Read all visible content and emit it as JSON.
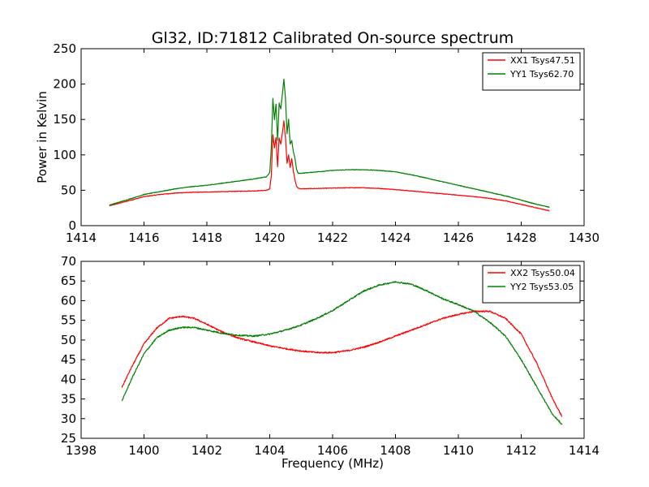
{
  "figure": {
    "title": "Gl32, ID:71812 Calibrated On-source spectrum"
  },
  "chart_data": [
    {
      "type": "line",
      "title": "Gl32, ID:71812 Calibrated On-source spectrum",
      "xlabel": "",
      "ylabel": "Power in Kelvin",
      "xlim": [
        1414,
        1430
      ],
      "ylim": [
        0,
        250
      ],
      "xticks": [
        1414,
        1416,
        1418,
        1420,
        1422,
        1424,
        1426,
        1428,
        1430
      ],
      "yticks": [
        0,
        50,
        100,
        150,
        200,
        250
      ],
      "grid": false,
      "legend_position": "top-right",
      "series": [
        {
          "name": "XX1 Tsys47.51",
          "color": "#ff0000",
          "x": [
            1414.9,
            1415.5,
            1416.0,
            1416.5,
            1417.0,
            1417.5,
            1418.0,
            1418.5,
            1419.0,
            1419.5,
            1419.9,
            1420.0,
            1420.05,
            1420.1,
            1420.15,
            1420.2,
            1420.25,
            1420.3,
            1420.35,
            1420.4,
            1420.45,
            1420.5,
            1420.55,
            1420.6,
            1420.65,
            1420.7,
            1420.75,
            1420.8,
            1420.85,
            1420.9,
            1421.0,
            1421.5,
            1422.0,
            1422.5,
            1423.0,
            1423.5,
            1424.0,
            1424.5,
            1425.0,
            1425.5,
            1426.0,
            1426.5,
            1427.0,
            1427.5,
            1428.0,
            1428.5,
            1428.9
          ],
          "y": [
            28,
            35,
            41,
            44,
            46,
            47,
            47.5,
            48,
            48.5,
            49,
            50,
            52,
            70,
            128,
            110,
            125,
            83,
            124,
            115,
            130,
            148,
            125,
            88,
            100,
            82,
            95,
            78,
            65,
            56,
            53,
            52,
            52.5,
            53,
            53.5,
            53.5,
            52.5,
            51,
            49,
            47,
            45,
            43,
            41,
            38.5,
            35,
            30,
            25,
            21
          ]
        },
        {
          "name": "YY1 Tsys62.70",
          "color": "#008000",
          "x": [
            1414.9,
            1415.5,
            1416.0,
            1416.5,
            1417.0,
            1417.5,
            1418.0,
            1418.5,
            1419.0,
            1419.5,
            1419.9,
            1420.0,
            1420.05,
            1420.1,
            1420.15,
            1420.2,
            1420.25,
            1420.3,
            1420.35,
            1420.4,
            1420.45,
            1420.5,
            1420.55,
            1420.6,
            1420.65,
            1420.7,
            1420.75,
            1420.8,
            1420.85,
            1420.9,
            1421.0,
            1421.5,
            1422.0,
            1422.5,
            1423.0,
            1423.5,
            1424.0,
            1424.5,
            1425.0,
            1425.5,
            1426.0,
            1426.5,
            1427.0,
            1427.5,
            1428.0,
            1428.5,
            1428.9
          ],
          "y": [
            29,
            37,
            44,
            48,
            52,
            55,
            57,
            60,
            63,
            66,
            69,
            75,
            110,
            180,
            150,
            172,
            120,
            173,
            165,
            185,
            207,
            180,
            130,
            150,
            115,
            120,
            105,
            96,
            80,
            74,
            74,
            76,
            78,
            79,
            79,
            78,
            76,
            72,
            67,
            62,
            57,
            52,
            47,
            42,
            36,
            30,
            26
          ]
        }
      ]
    },
    {
      "type": "line",
      "title": "",
      "xlabel": "Frequency (MHz)",
      "ylabel": "",
      "xlim": [
        1398,
        1414
      ],
      "ylim": [
        25,
        70
      ],
      "xticks": [
        1398,
        1400,
        1402,
        1404,
        1406,
        1408,
        1410,
        1412,
        1414
      ],
      "yticks": [
        25,
        30,
        35,
        40,
        45,
        50,
        55,
        60,
        65,
        70
      ],
      "grid": false,
      "legend_position": "top-right",
      "series": [
        {
          "name": "XX2 Tsys50.04",
          "color": "#ff0000",
          "x": [
            1399.3,
            1399.6,
            1400.0,
            1400.4,
            1400.8,
            1401.2,
            1401.6,
            1402.0,
            1402.5,
            1403.0,
            1403.5,
            1404.0,
            1404.5,
            1405.0,
            1405.5,
            1406.0,
            1406.5,
            1407.0,
            1407.5,
            1408.0,
            1408.5,
            1409.0,
            1409.5,
            1410.0,
            1410.5,
            1411.0,
            1411.5,
            1412.0,
            1412.5,
            1413.0,
            1413.3
          ],
          "y": [
            38,
            43,
            49,
            53,
            55.5,
            56,
            55.5,
            54,
            52,
            50.5,
            49.5,
            48.5,
            47.8,
            47.2,
            46.8,
            46.8,
            47.3,
            48.2,
            49.5,
            51,
            52.5,
            54,
            55.5,
            56.5,
            57.3,
            57.3,
            55.5,
            51.5,
            44,
            35,
            30.5
          ]
        },
        {
          "name": "YY2 Tsys53.05",
          "color": "#008000",
          "x": [
            1399.3,
            1399.6,
            1400.0,
            1400.4,
            1400.8,
            1401.2,
            1401.6,
            1402.0,
            1402.5,
            1403.0,
            1403.5,
            1404.0,
            1404.5,
            1405.0,
            1405.5,
            1406.0,
            1406.5,
            1407.0,
            1407.5,
            1408.0,
            1408.5,
            1409.0,
            1409.5,
            1410.0,
            1410.5,
            1411.0,
            1411.5,
            1412.0,
            1412.5,
            1413.0,
            1413.3
          ],
          "y": [
            34.5,
            40,
            46.5,
            50.5,
            52.5,
            53.2,
            53.2,
            52.5,
            51.7,
            51.2,
            51,
            51.5,
            52.5,
            53.8,
            55.5,
            57.5,
            60,
            62.5,
            64,
            64.8,
            64.2,
            62.5,
            60.5,
            59,
            57.3,
            54.5,
            51,
            45,
            38,
            31,
            28.5
          ]
        }
      ]
    }
  ]
}
